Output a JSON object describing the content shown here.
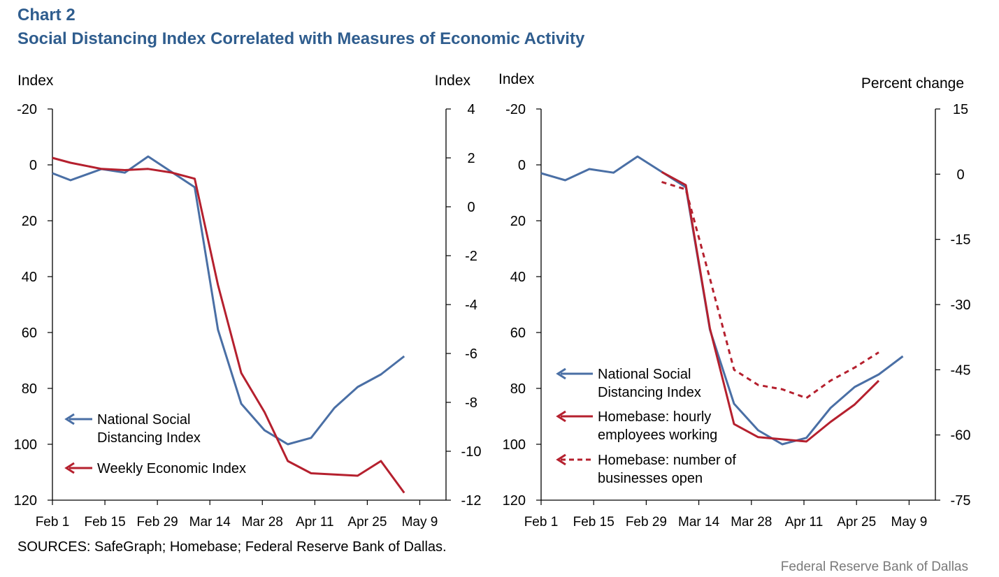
{
  "header": {
    "chart_number": "Chart 2",
    "title": "Social Distancing Index Correlated with Measures of Economic Activity"
  },
  "footer": {
    "sources": "SOURCES: SafeGraph; Homebase; Federal Reserve Bank of Dallas.",
    "credit": "Federal Reserve Bank of Dallas"
  },
  "colors": {
    "blue": "#4a6fa5",
    "red": "#b5202e",
    "title": "#2f5d8e"
  },
  "chart_data": [
    {
      "type": "line",
      "left_axis": {
        "label": "Index",
        "inverted": true,
        "range": [
          -20,
          120
        ],
        "ticks": [
          -20,
          0,
          20,
          40,
          60,
          80,
          100,
          120
        ]
      },
      "right_axis": {
        "label": "Index",
        "range": [
          -12,
          4
        ],
        "ticks": [
          4,
          2,
          0,
          -2,
          -4,
          -6,
          -8,
          -10,
          -12
        ]
      },
      "x_tick_labels": [
        "Feb 1",
        "Feb 15",
        "Feb 29",
        "Mar 14",
        "Mar 28",
        "Apr 11",
        "Apr 25",
        "May 9"
      ],
      "x_range": [
        0,
        16
      ],
      "series": [
        {
          "name": "National Social Distancing Index",
          "axis": "left",
          "color": "#4a6fa5",
          "dash": false,
          "x": [
            0,
            0.7,
            1.9,
            2.8,
            3.7,
            4.6,
            5.5,
            6.4,
            7.3,
            8.2,
            9.1,
            10.0,
            10.9,
            11.8,
            12.7,
            13.6,
            14.5
          ],
          "y": [
            3,
            5.5,
            1.5,
            2.8,
            -3,
            2.5,
            8,
            59,
            85.5,
            95,
            100,
            97.7,
            87,
            79.5,
            75,
            68.5,
            null
          ]
        },
        {
          "name": "Weekly Economic Index",
          "axis": "right",
          "color": "#b5202e",
          "dash": false,
          "x": [
            0,
            0.7,
            1.9,
            2.8,
            3.7,
            4.6,
            5.5,
            6.4,
            7.3,
            8.2,
            9.1,
            10.0,
            10.9,
            11.8,
            12.7,
            13.6,
            14.5
          ],
          "y": [
            2,
            1.8,
            1.55,
            1.5,
            1.55,
            1.4,
            1.15,
            -3.2,
            -6.8,
            -8.4,
            -10.4,
            -10.9,
            -10.95,
            -11.0,
            -10.4,
            -11.7,
            null
          ]
        }
      ],
      "legend": [
        {
          "label_lines": [
            "National Social",
            "Distancing Index"
          ],
          "color": "#4a6fa5",
          "dash": false
        },
        {
          "label_lines": [
            "Weekly Economic Index"
          ],
          "color": "#b5202e",
          "dash": false
        }
      ]
    },
    {
      "type": "line",
      "left_axis": {
        "label": "Index",
        "inverted": true,
        "range": [
          -20,
          120
        ],
        "ticks": [
          -20,
          0,
          20,
          40,
          60,
          80,
          100,
          120
        ]
      },
      "right_axis": {
        "label": "Percent change",
        "range": [
          -75,
          15
        ],
        "ticks": [
          15,
          0,
          -15,
          -30,
          -45,
          -60,
          -75
        ]
      },
      "x_tick_labels": [
        "Feb 1",
        "Feb 15",
        "Feb 29",
        "Mar 14",
        "Mar 28",
        "Apr 11",
        "Apr 25",
        "May 9"
      ],
      "x_range": [
        0,
        16
      ],
      "series": [
        {
          "name": "National Social Distancing Index",
          "axis": "left",
          "color": "#4a6fa5",
          "dash": false,
          "x": [
            0,
            1,
            2,
            3,
            4,
            5,
            6,
            7,
            8,
            9,
            10,
            11,
            12,
            13,
            14,
            15
          ],
          "y": [
            3,
            5.5,
            1.5,
            2.8,
            -3,
            2.5,
            8,
            59,
            85.5,
            95,
            100,
            97.7,
            87,
            79.5,
            75,
            68.5
          ]
        },
        {
          "name": "Homebase: hourly employees working",
          "axis": "right",
          "color": "#b5202e",
          "dash": false,
          "x": [
            5,
            6,
            7,
            8,
            9,
            10,
            11,
            12,
            13,
            14
          ],
          "y": [
            0.5,
            -2.5,
            -35.5,
            -57.5,
            -60.5,
            -61,
            -61.5,
            -57,
            -53,
            -47.5
          ]
        },
        {
          "name": "Homebase: number of businesses open",
          "axis": "right",
          "color": "#b5202e",
          "dash": true,
          "x": [
            5,
            6,
            7,
            8,
            9,
            10,
            11,
            12,
            13,
            14
          ],
          "y": [
            -1.8,
            -3.5,
            -24,
            -45,
            -48.5,
            -49.5,
            -51.5,
            -47.5,
            -44.5,
            -41
          ]
        }
      ],
      "legend": [
        {
          "label_lines": [
            "National Social",
            "Distancing Index"
          ],
          "color": "#4a6fa5",
          "dash": false
        },
        {
          "label_lines": [
            "Homebase: hourly",
            "employees working"
          ],
          "color": "#b5202e",
          "dash": false
        },
        {
          "label_lines": [
            "Homebase: number of",
            "businesses open"
          ],
          "color": "#b5202e",
          "dash": true
        }
      ]
    }
  ]
}
